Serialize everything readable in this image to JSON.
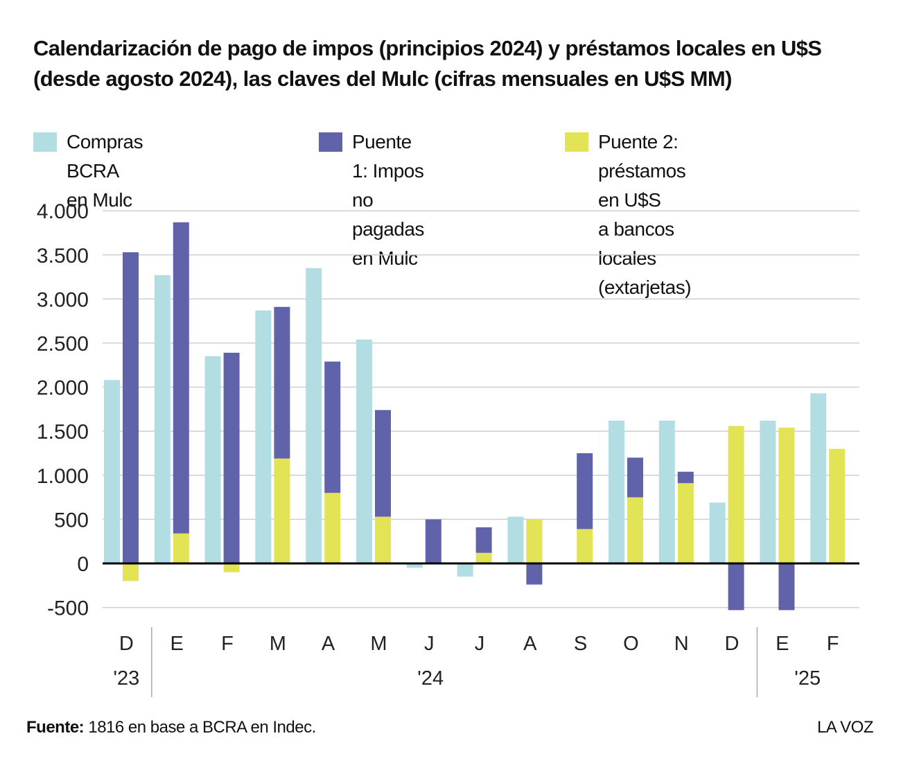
{
  "title": "Calendarización de pago de impos (principios 2024) y préstamos locales en U$S (desde agosto 2024), las claves del Mulc (cifras mensuales en U$S MM)",
  "footer": {
    "source_label": "Fuente:",
    "source_text": " 1816 en base a BCRA en Indec.",
    "brand": "LA VOZ"
  },
  "chart_data": {
    "type": "bar",
    "title": "Calendarización de pago de impos (principios 2024) y préstamos locales en U$S (desde agosto 2024), las claves del Mulc (cifras mensuales en U$S MM)",
    "xlabel": "",
    "ylabel": "",
    "ylim": [
      -500,
      4000
    ],
    "yticks": [
      4000,
      3500,
      3000,
      2500,
      2000,
      1500,
      1000,
      500,
      0,
      -500
    ],
    "ytick_labels": [
      "4.000",
      "3.500",
      "3.000",
      "2.500",
      "2.000",
      "1.500",
      "1.000",
      "500",
      "0",
      "-500"
    ],
    "grid": true,
    "legend_position": "top",
    "categories": [
      "D",
      "E",
      "F",
      "M",
      "A",
      "M",
      "J",
      "J",
      "A",
      "S",
      "O",
      "N",
      "D",
      "E",
      "F"
    ],
    "year_groups": [
      {
        "label": "'23",
        "start": 0,
        "end": 0
      },
      {
        "label": "'24",
        "start": 1,
        "end": 12
      },
      {
        "label": "'25",
        "start": 13,
        "end": 14
      }
    ],
    "series": [
      {
        "name": "Compras BCRA en Mulc",
        "color": "#b2dde2",
        "values": [
          2080,
          3270,
          2350,
          2870,
          3350,
          2540,
          -50,
          -150,
          530,
          0,
          1620,
          1620,
          690,
          1620,
          1930
        ]
      },
      {
        "name": "Puente 1: Impos no pagadas en Mulc",
        "color": "#6063aa",
        "stacked": true,
        "values": [
          3530,
          3530,
          2390,
          1720,
          1490,
          1210,
          500,
          290,
          -240,
          860,
          450,
          130,
          -530,
          -530,
          0
        ]
      },
      {
        "name": "Puente 2: préstamos en U$S a bancos locales (extarjetas)",
        "color": "#e3e356",
        "stacked": true,
        "values": [
          -200,
          340,
          -100,
          1190,
          800,
          530,
          0,
          120,
          500,
          390,
          750,
          910,
          1560,
          1540,
          1300
        ]
      }
    ]
  },
  "legend": [
    {
      "label": "Compras BCRA en Mulc",
      "color": "#b2dde2"
    },
    {
      "label": "Puente 1: Impos no\npagadas en Mulc",
      "color": "#6063aa"
    },
    {
      "label": "Puente 2: préstamos en U$S\na bancos locales (extarjetas)",
      "color": "#e3e356"
    }
  ]
}
